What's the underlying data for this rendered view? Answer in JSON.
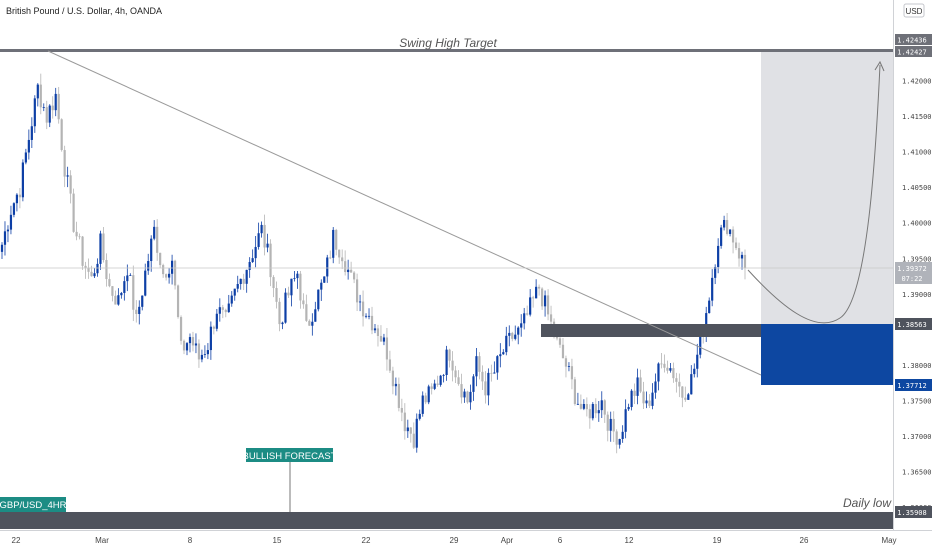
{
  "header": {
    "title": "British Pound / U.S. Dollar, 4h, OANDA",
    "currency": "USD"
  },
  "annotations": {
    "swing_high": "Swing High Target",
    "daily_low": "Daily low",
    "bullish_forecast": "BULLISH FORECAST",
    "symbol_tag": "GBP/USD_4HR"
  },
  "colors": {
    "bull_candle": "#0d3fa6",
    "bear_candle": "#b4b4b4",
    "zone_blue": "#0d47a1",
    "zone_dark": "#4f535d",
    "target_shade": "#e0e1e5",
    "tag_teal": "#1c8c84",
    "trendline": "#9a9a9a"
  },
  "chart_data": {
    "type": "candlestick",
    "symbol": "GBP/USD",
    "timeframe": "4h",
    "source": "OANDA",
    "x_tick_labels": [
      "22",
      "Mar",
      "8",
      "15",
      "22",
      "29",
      "Apr",
      "6",
      "12",
      "19",
      "26",
      "May"
    ],
    "y_tick_labels": [
      "1.42000",
      "1.41500",
      "1.41000",
      "1.40500",
      "1.40000",
      "1.39500",
      "1.39000",
      "1.38000",
      "1.37500",
      "1.37000",
      "1.36500",
      "1.36000"
    ],
    "ylim": [
      1.3555,
      1.4295
    ],
    "price_labels": {
      "swing_high_upper": "1.42436",
      "swing_high_lower": "1.42427",
      "current": "1.39372",
      "countdown": "07:22",
      "zone_top": "1.38563",
      "zone_bottom": "1.37712",
      "daily_low": "1.35908"
    },
    "levels": {
      "swing_high": 1.4243,
      "current": 1.39372,
      "zone_top": 1.38563,
      "zone_bottom": 1.37712,
      "daily_low": 1.35908
    },
    "candles_approx": [
      1.397,
      1.402,
      1.405,
      1.412,
      1.419,
      1.415,
      1.418,
      1.408,
      1.4,
      1.395,
      1.392,
      1.397,
      1.391,
      1.389,
      1.394,
      1.386,
      1.393,
      1.399,
      1.393,
      1.395,
      1.382,
      1.384,
      1.381,
      1.383,
      1.388,
      1.386,
      1.39,
      1.393,
      1.396,
      1.399,
      1.394,
      1.386,
      1.39,
      1.393,
      1.385,
      1.389,
      1.392,
      1.398,
      1.396,
      1.392,
      1.389,
      1.387,
      1.385,
      1.382,
      1.377,
      1.372,
      1.37,
      1.375,
      1.376,
      1.379,
      1.382,
      1.378,
      1.375,
      1.38,
      1.377,
      1.379,
      1.382,
      1.384,
      1.385,
      1.388,
      1.391,
      1.387,
      1.383,
      1.38,
      1.376,
      1.373,
      1.374,
      1.375,
      1.371,
      1.37,
      1.375,
      1.377,
      1.374,
      1.378,
      1.381,
      1.379,
      1.376,
      1.378,
      1.383,
      1.39,
      1.398,
      1.4,
      1.397,
      1.3937
    ]
  }
}
